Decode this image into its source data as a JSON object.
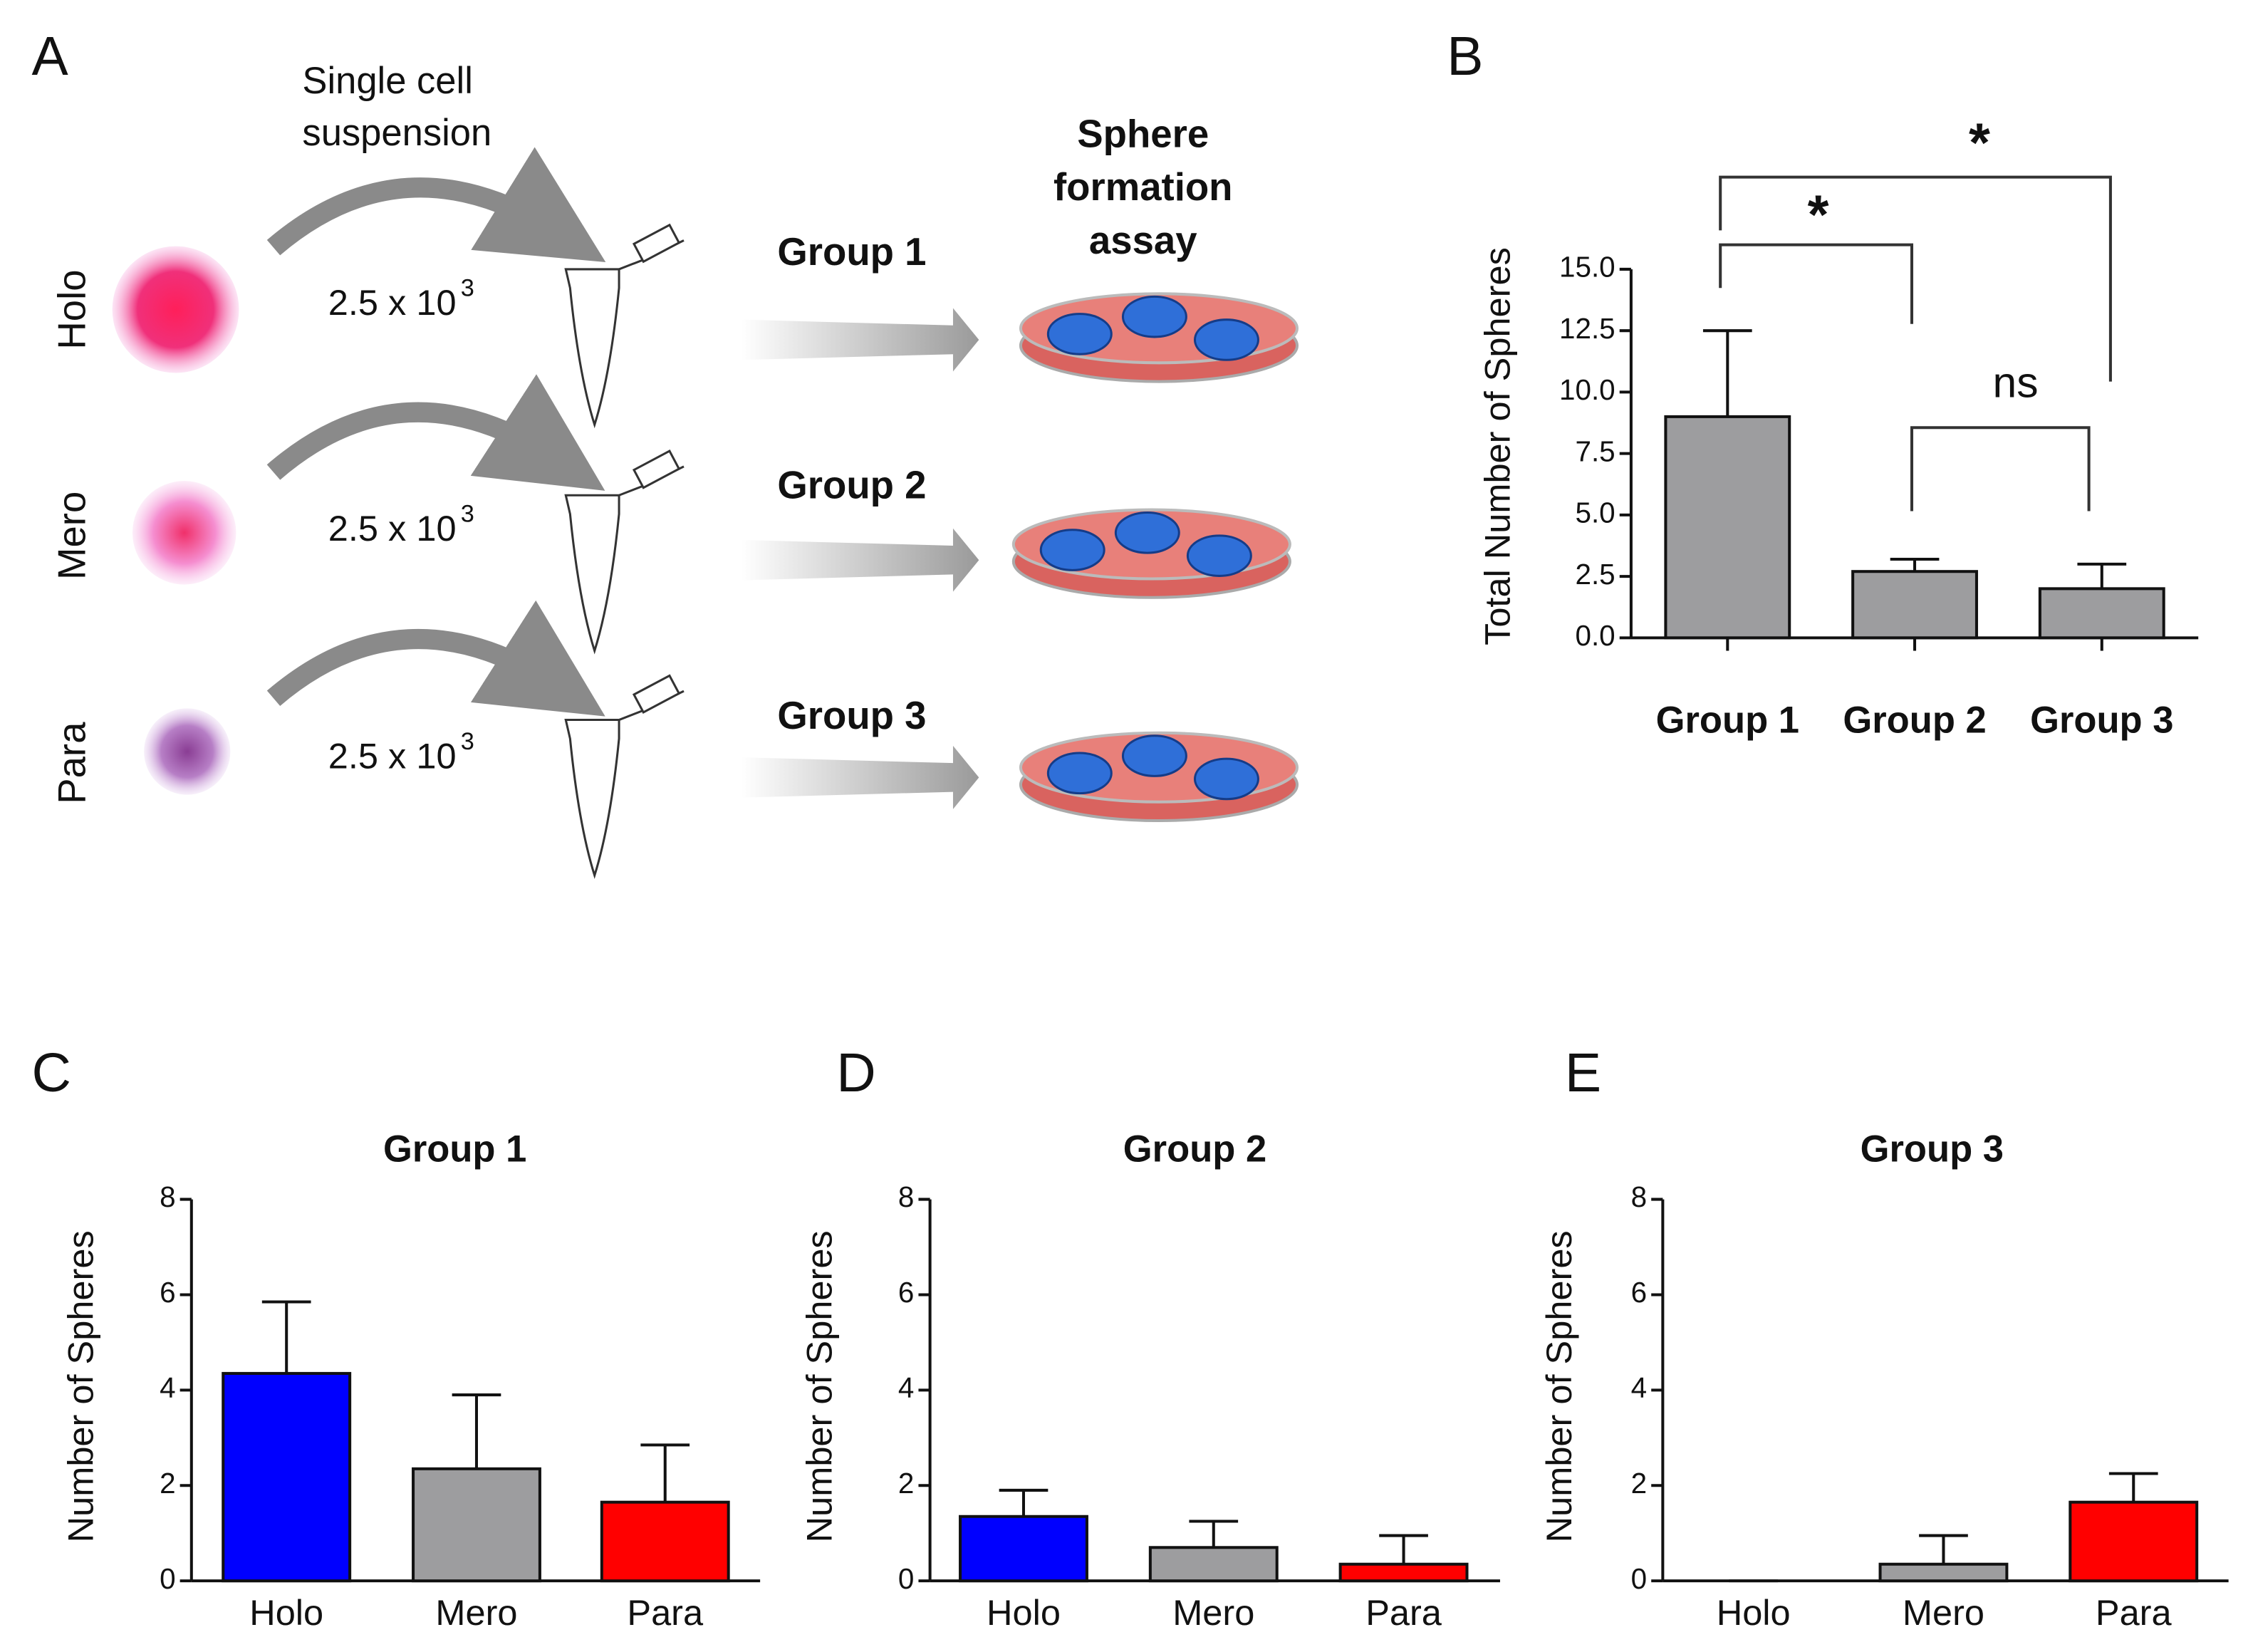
{
  "diagram": {
    "panel": "A",
    "suspension_lines": [
      "Single cell",
      "suspension"
    ],
    "rows": [
      {
        "label": "Holo",
        "count_base": "2.5 x 10",
        "count_exponent": "3",
        "group": "Group 1"
      },
      {
        "label": "Mero",
        "count_base": "2.5 x 10",
        "count_exponent": "3",
        "group": "Group 2"
      },
      {
        "label": "Para",
        "count_base": "2.5 x 10",
        "count_exponent": "3",
        "group": "Group 3"
      }
    ],
    "assay_lines": [
      "Sphere",
      "formation",
      "assay"
    ]
  },
  "chart_data": [
    {
      "type": "bar",
      "panel": "B",
      "ylabel": "Total Number of Spheres",
      "categories": [
        "Group 1",
        "Group 2",
        "Group 3"
      ],
      "values": [
        9.0,
        2.7,
        2.0
      ],
      "errors": [
        3.5,
        0.5,
        1.0
      ],
      "colors": [
        "#9d9d9f",
        "#9d9d9f",
        "#9d9d9f"
      ],
      "ylim": [
        0,
        15
      ],
      "yticks": [
        {
          "value": 0,
          "label": "0.0"
        },
        {
          "value": 2.5,
          "label": "2.5"
        },
        {
          "value": 5,
          "label": "5.0"
        },
        {
          "value": 7.5,
          "label": "7.5"
        },
        {
          "value": 10,
          "label": "10.0"
        },
        {
          "value": 12.5,
          "label": "12.5"
        },
        {
          "value": 15,
          "label": "15.0"
        }
      ],
      "annotations": [
        "*",
        "*",
        "ns"
      ]
    },
    {
      "type": "bar",
      "panel": "C",
      "title": "Group 1",
      "ylabel": "Number of Spheres",
      "categories": [
        "Holo",
        "Mero",
        "Para"
      ],
      "values": [
        4.35,
        2.35,
        1.65
      ],
      "errors": [
        1.5,
        1.55,
        1.2
      ],
      "colors": [
        "#0000ff",
        "#9d9d9f",
        "#ff0000"
      ],
      "ylim": [
        0,
        8
      ],
      "yticks": [
        0,
        2,
        4,
        6,
        8
      ]
    },
    {
      "type": "bar",
      "panel": "D",
      "title": "Group 2",
      "ylabel": "Number of Spheres",
      "categories": [
        "Holo",
        "Mero",
        "Para"
      ],
      "values": [
        1.35,
        0.7,
        0.35
      ],
      "errors": [
        0.55,
        0.55,
        0.6
      ],
      "colors": [
        "#0000ff",
        "#9d9d9f",
        "#ff0000"
      ],
      "ylim": [
        0,
        8
      ],
      "yticks": [
        0,
        2,
        4,
        6,
        8
      ]
    },
    {
      "type": "bar",
      "panel": "E",
      "title": "Group 3",
      "ylabel": "Number of Spheres",
      "categories": [
        "Holo",
        "Mero",
        "Para"
      ],
      "values": [
        0,
        0.35,
        1.65
      ],
      "errors": [
        0,
        0.6,
        0.6
      ],
      "colors": [
        "#0000ff",
        "#9d9d9f",
        "#ff0000"
      ],
      "ylim": [
        0,
        8
      ],
      "yticks": [
        0,
        2,
        4,
        6,
        8
      ]
    }
  ]
}
